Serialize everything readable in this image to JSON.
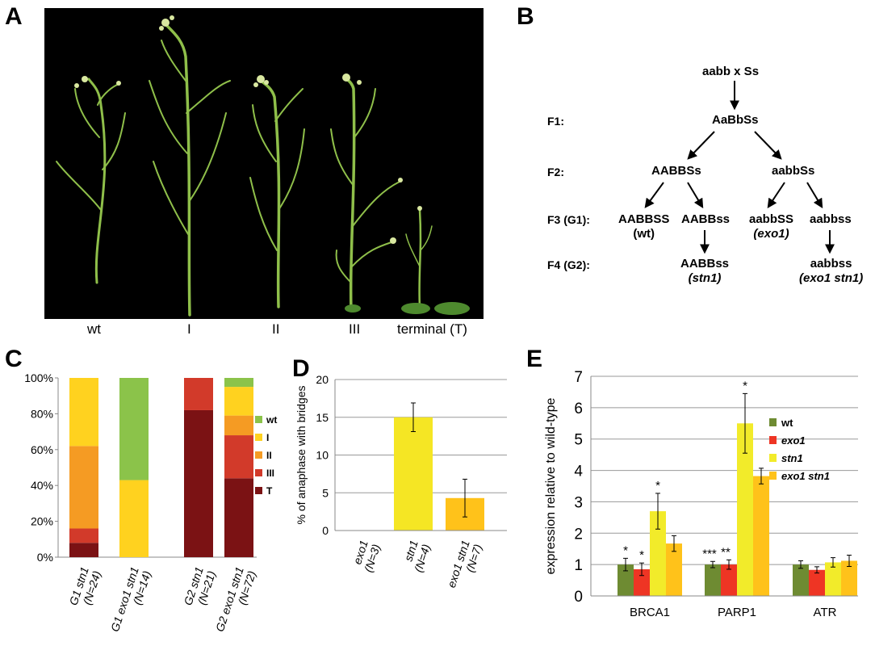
{
  "panels": {
    "a": "A",
    "b": "B",
    "c": "C",
    "d": "D",
    "e": "E"
  },
  "photo": {
    "labels": [
      "wt",
      "I",
      "II",
      "III",
      "terminal (T)"
    ]
  },
  "cross": {
    "p": "aabb  x  Ss",
    "f1": "AaBbSs",
    "f2_left": "AABBSs",
    "f2_right": "aabbSs",
    "g1_a": "AABBSS",
    "g1_a_sub": "(wt)",
    "g1_b": "AABBss",
    "g1_c": "aabbSS",
    "g1_c_sub": "(exo1)",
    "g1_d": "aabbss",
    "g2_a": "AABBss",
    "g2_a_sub": "(stn1)",
    "g2_b": "aabbss",
    "g2_b_sub": "(exo1 stn1)",
    "gen_labels": [
      "F1:",
      "F2:",
      "F3 (G1):",
      "F4 (G2):"
    ]
  },
  "chart_data": [
    {
      "panel": "C",
      "type": "bar",
      "stacked": true,
      "categories": [
        "G1 stn1\n(N=24)",
        "G1 exo1 stn1\n(N=14)",
        "G2 stn1\n(N=21)",
        "G2 exo1 stn1\n(N=72)"
      ],
      "series": [
        {
          "name": "T",
          "color": "#7B1214",
          "values": [
            8,
            0,
            82,
            44
          ]
        },
        {
          "name": "III",
          "color": "#D23A2A",
          "values": [
            8,
            0,
            18,
            24
          ]
        },
        {
          "name": "II",
          "color": "#F59B23",
          "values": [
            46,
            0,
            0,
            11
          ]
        },
        {
          "name": "I",
          "color": "#FFD21F",
          "values": [
            38,
            43,
            0,
            16
          ]
        },
        {
          "name": "wt",
          "color": "#8BC34A",
          "values": [
            0,
            57,
            0,
            5
          ]
        }
      ],
      "legend": [
        "wt",
        "I",
        "II",
        "III",
        "T"
      ],
      "yticks": [
        "0%",
        "20%",
        "40%",
        "60%",
        "80%",
        "100%"
      ],
      "ylim": [
        0,
        100
      ]
    },
    {
      "panel": "D",
      "type": "bar",
      "categories": [
        "exo1\n(N=3)",
        "stn1\n(N=4)",
        "exo1 stn1\n(N=7)"
      ],
      "values": [
        0,
        15,
        4.3
      ],
      "errors": [
        0,
        1.9,
        2.5
      ],
      "colors": [
        "#F5E624",
        "#F5E624",
        "#FFC21A"
      ],
      "ylabel": "% of anaphase with bridges",
      "yticks": [
        "0",
        "5",
        "10",
        "15",
        "20"
      ],
      "ylim": [
        0,
        20
      ]
    },
    {
      "panel": "E",
      "type": "bar",
      "categories": [
        "BRCA1",
        "PARP1",
        "ATR"
      ],
      "series": [
        {
          "name": "wt",
          "color": "#6E8B32",
          "values": [
            1.0,
            1.0,
            1.0
          ],
          "errors": [
            0.2,
            0.1,
            0.12
          ],
          "sig": [
            "*",
            "***",
            ""
          ]
        },
        {
          "name": "exo1",
          "color": "#EE3524",
          "values": [
            0.85,
            1.0,
            0.83
          ],
          "errors": [
            0.2,
            0.15,
            0.1
          ],
          "sig": [
            "*",
            "**",
            ""
          ]
        },
        {
          "name": "stn1",
          "color": "#F2EB2A",
          "values": [
            2.7,
            5.5,
            1.07
          ],
          "errors": [
            0.57,
            0.95,
            0.15
          ],
          "sig": [
            "*",
            "*",
            ""
          ]
        },
        {
          "name": "exo1 stn1",
          "color": "#FFC21A",
          "values": [
            1.67,
            3.82,
            1.12
          ],
          "errors": [
            0.25,
            0.25,
            0.18
          ],
          "sig": [
            "",
            "",
            ""
          ]
        }
      ],
      "ylabel": "expression relative to wild-type",
      "yticks": [
        "0",
        "1",
        "2",
        "3",
        "4",
        "5",
        "6",
        "7"
      ],
      "ylim": [
        0,
        7
      ]
    }
  ]
}
